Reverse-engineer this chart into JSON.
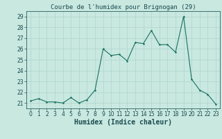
{
  "title": "Courbe de l'humidex pour Brignogan (29)",
  "xlabel": "Humidex (Indice chaleur)",
  "x_values": [
    0,
    1,
    2,
    3,
    4,
    5,
    6,
    7,
    8,
    9,
    10,
    11,
    12,
    13,
    14,
    15,
    16,
    17,
    18,
    19,
    20,
    21,
    22,
    23
  ],
  "y_values": [
    21.2,
    21.4,
    21.1,
    21.1,
    21.0,
    21.5,
    21.0,
    21.3,
    22.2,
    26.0,
    25.4,
    25.5,
    24.9,
    26.6,
    26.5,
    27.7,
    26.4,
    26.4,
    25.7,
    29.0,
    23.2,
    22.2,
    21.8,
    20.9
  ],
  "line_color": "#1a7060",
  "marker": ".",
  "marker_color": "#1a7060",
  "bg_color": "#c8e8e0",
  "grid_color": "#afd4cc",
  "title_color": "#1a4a50",
  "tick_color": "#1a4a50",
  "spine_color": "#2a6060",
  "ylim": [
    20.5,
    29.5
  ],
  "yticks": [
    21,
    22,
    23,
    24,
    25,
    26,
    27,
    28,
    29
  ],
  "xticks": [
    0,
    1,
    2,
    3,
    4,
    5,
    6,
    7,
    8,
    9,
    10,
    11,
    12,
    13,
    14,
    15,
    16,
    17,
    18,
    19,
    20,
    21,
    22,
    23
  ],
  "title_fontsize": 6.5,
  "label_fontsize": 7,
  "tick_fontsize": 5.5,
  "linewidth": 0.8,
  "markersize": 2.5
}
